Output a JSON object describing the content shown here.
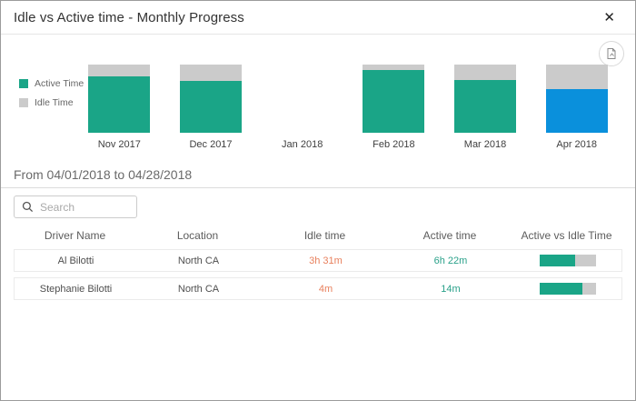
{
  "modal": {
    "title": "Idle vs Active time - Monthly Progress",
    "close_glyph": "✕"
  },
  "chart_data": {
    "type": "bar",
    "stacked": true,
    "categories": [
      "Nov 2017",
      "Dec 2017",
      "Jan 2018",
      "Feb 2018",
      "Mar 2018",
      "Apr 2018"
    ],
    "series": [
      {
        "name": "Active Time",
        "color": "#1aa587",
        "values_pct": [
          83,
          76,
          0,
          92,
          77,
          64
        ]
      },
      {
        "name": "Idle Time",
        "color": "#cbcbcb",
        "values_pct": [
          17,
          24,
          0,
          8,
          23,
          36
        ]
      }
    ],
    "selected_category": "Apr 2018",
    "selected_color": "#0a90dc",
    "legend_position": "left",
    "ylim_pct": [
      0,
      100
    ],
    "grid": false
  },
  "filters": {
    "date_range_label": "From 04/01/2018 to 04/28/2018",
    "search_placeholder": "Search",
    "search_value": ""
  },
  "table": {
    "columns": [
      "Driver Name",
      "Location",
      "Idle time",
      "Active time",
      "Active vs Idle Time"
    ],
    "rows": [
      {
        "driver": "Al Bilotti",
        "location": "North CA",
        "idle": "3h 31m",
        "active": "6h 22m",
        "active_pct": 63
      },
      {
        "driver": "Stephanie Bilotti",
        "location": "North CA",
        "idle": "4m",
        "active": "14m",
        "active_pct": 76
      }
    ]
  },
  "colors": {
    "active_teal": "#1aa587",
    "idle_gray": "#cbcbcb",
    "selected_blue": "#0a90dc",
    "idle_text_orange": "#e8805d",
    "active_text_teal": "#2aa18a"
  }
}
